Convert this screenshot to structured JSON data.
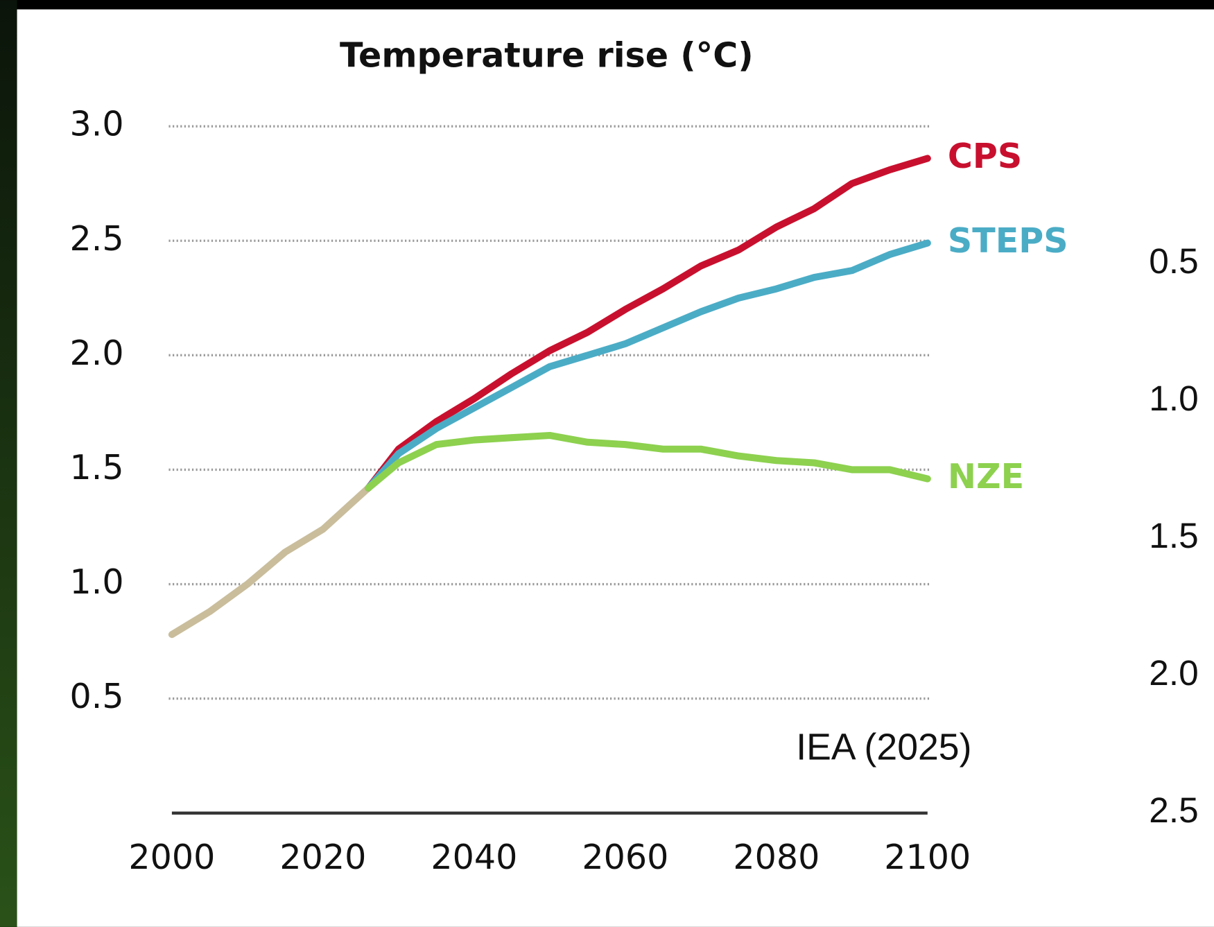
{
  "chart_data": {
    "type": "line",
    "title": "Temperature rise (°C)",
    "caption": "IEA (2025)",
    "xlim": [
      2000,
      2100
    ],
    "xticks": [
      2000,
      2020,
      2040,
      2060,
      2080,
      2100
    ],
    "ylim": [
      0,
      3
    ],
    "yticks": [
      {
        "value": 0.5,
        "label": "0.5"
      },
      {
        "value": 1,
        "label": "1.0"
      },
      {
        "value": 1.5,
        "label": "1.5"
      },
      {
        "value": 2,
        "label": "2.0"
      },
      {
        "value": 2.5,
        "label": "2.5"
      },
      {
        "value": 3,
        "label": "3.0"
      }
    ],
    "y2lim": [
      0,
      2.5
    ],
    "y2_inverted": true,
    "y2ticks": [
      {
        "value": 0.5,
        "label": "0.5"
      },
      {
        "value": 1,
        "label": "1.0"
      },
      {
        "value": 1.5,
        "label": "1.5"
      },
      {
        "value": 2,
        "label": "2.0"
      },
      {
        "value": 2.5,
        "label": "2.5"
      }
    ],
    "grid": true,
    "series": [
      {
        "color": "#c9bd9c",
        "x": [
          2000,
          2005,
          2010,
          2015,
          2020,
          2025,
          2026
        ],
        "values": [
          0.78,
          0.88,
          1.0,
          1.14,
          1.24,
          1.39,
          1.42
        ]
      },
      {
        "name": "CPS",
        "color": "#c8102e",
        "x": [
          2026,
          2030,
          2035,
          2040,
          2045,
          2050,
          2055,
          2060,
          2065,
          2070,
          2075,
          2080,
          2085,
          2090,
          2095,
          2100
        ],
        "values": [
          1.42,
          1.59,
          1.71,
          1.81,
          1.92,
          2.02,
          2.1,
          2.2,
          2.29,
          2.39,
          2.46,
          2.56,
          2.64,
          2.75,
          2.81,
          2.86
        ]
      },
      {
        "name": "STEPS",
        "color": "#4bacc6",
        "x": [
          2026,
          2030,
          2035,
          2040,
          2045,
          2050,
          2055,
          2060,
          2065,
          2070,
          2075,
          2080,
          2085,
          2090,
          2095,
          2100
        ],
        "values": [
          1.42,
          1.57,
          1.68,
          1.77,
          1.86,
          1.95,
          2.0,
          2.05,
          2.12,
          2.19,
          2.25,
          2.29,
          2.34,
          2.37,
          2.44,
          2.49
        ]
      },
      {
        "name": "NZE",
        "color": "#8dd14f",
        "x": [
          2026,
          2030,
          2035,
          2040,
          2045,
          2050,
          2055,
          2060,
          2065,
          2070,
          2075,
          2080,
          2085,
          2090,
          2095,
          2100
        ],
        "values": [
          1.42,
          1.53,
          1.61,
          1.63,
          1.64,
          1.65,
          1.62,
          1.61,
          1.59,
          1.59,
          1.56,
          1.54,
          1.53,
          1.5,
          1.5,
          1.46
        ]
      }
    ]
  }
}
